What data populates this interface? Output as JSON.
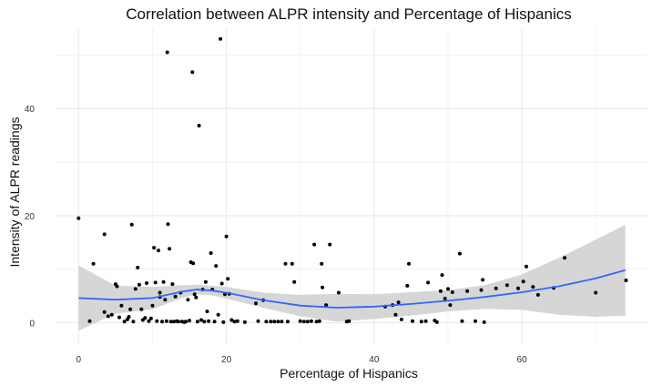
{
  "chart_data": {
    "type": "scatter",
    "title": "Correlation between ALPR intensity and Percentage of Hispanics",
    "xlabel": "Percentage of Hispanics",
    "ylabel": "Intensity of ALPR readings",
    "xlim": [
      -3,
      77
    ],
    "ylim": [
      -4,
      55
    ],
    "x_ticks": [
      0,
      20,
      40,
      60
    ],
    "y_ticks": [
      0,
      20,
      40
    ],
    "grid": true,
    "colors": {
      "points": "#000000",
      "smooth_line": "#3366ff",
      "ribbon": "#cfcfcf",
      "grid": "#ebebeb"
    },
    "points": [
      [
        0,
        19.5
      ],
      [
        1.5,
        0.3
      ],
      [
        2,
        11
      ],
      [
        3.5,
        16.5
      ],
      [
        3.5,
        2
      ],
      [
        4,
        1.2
      ],
      [
        4.5,
        1.5
      ],
      [
        5,
        7.2
      ],
      [
        5.2,
        6.8
      ],
      [
        5.5,
        1
      ],
      [
        5.8,
        3.2
      ],
      [
        6.2,
        0.2
      ],
      [
        6.6,
        0.6
      ],
      [
        6.8,
        1.1
      ],
      [
        7,
        2.5
      ],
      [
        7.2,
        18.3
      ],
      [
        7.4,
        0.2
      ],
      [
        7.7,
        6.3
      ],
      [
        8,
        10.3
      ],
      [
        8.2,
        7.1
      ],
      [
        8.5,
        2.5
      ],
      [
        8.7,
        0.5
      ],
      [
        9,
        0.9
      ],
      [
        9.2,
        7.4
      ],
      [
        9.5,
        0.3
      ],
      [
        9.8,
        0.8
      ],
      [
        10,
        3.2
      ],
      [
        10.2,
        14
      ],
      [
        10.4,
        7.5
      ],
      [
        10.6,
        0.3
      ],
      [
        10.8,
        13.5
      ],
      [
        11,
        5.6
      ],
      [
        11,
        4.8
      ],
      [
        11.3,
        0.2
      ],
      [
        11.5,
        7.6
      ],
      [
        11.7,
        4.3
      ],
      [
        11.9,
        0.3
      ],
      [
        12,
        50.5
      ],
      [
        12.1,
        18.4
      ],
      [
        12.3,
        13.8
      ],
      [
        12.5,
        0.2
      ],
      [
        12.7,
        7.2
      ],
      [
        12.9,
        0.2
      ],
      [
        13.1,
        4.9
      ],
      [
        13.3,
        0.3
      ],
      [
        13.5,
        0.2
      ],
      [
        13.8,
        5.6
      ],
      [
        14,
        0.2
      ],
      [
        14.3,
        0.1
      ],
      [
        14.5,
        0.2
      ],
      [
        14.8,
        4.3
      ],
      [
        15,
        0.4
      ],
      [
        15.2,
        11.3
      ],
      [
        15.4,
        46.8
      ],
      [
        15.5,
        11.1
      ],
      [
        15.7,
        5.3
      ],
      [
        15.9,
        4.7
      ],
      [
        16.1,
        0.2
      ],
      [
        16.3,
        36.8
      ],
      [
        16.6,
        0.5
      ],
      [
        16.8,
        6.2
      ],
      [
        17,
        0.2
      ],
      [
        17.2,
        7.6
      ],
      [
        17.4,
        2.1
      ],
      [
        17.6,
        0.3
      ],
      [
        17.9,
        13
      ],
      [
        18.1,
        6.2
      ],
      [
        18.4,
        0.2
      ],
      [
        18.6,
        10.6
      ],
      [
        18.9,
        1.5
      ],
      [
        19.2,
        53
      ],
      [
        19.4,
        7.3
      ],
      [
        19.6,
        0.1
      ],
      [
        19.8,
        5.3
      ],
      [
        20,
        16.1
      ],
      [
        20.2,
        8.2
      ],
      [
        20.4,
        5.4
      ],
      [
        20.7,
        0.5
      ],
      [
        21.1,
        0.2
      ],
      [
        21.5,
        0.3
      ],
      [
        22.5,
        0.1
      ],
      [
        24,
        3.6
      ],
      [
        24.3,
        0.3
      ],
      [
        25,
        4.2
      ],
      [
        25.4,
        0.2
      ],
      [
        26,
        0.2
      ],
      [
        26.5,
        0.2
      ],
      [
        27,
        0.2
      ],
      [
        27.5,
        0.2
      ],
      [
        28,
        11
      ],
      [
        28.3,
        0.2
      ],
      [
        28.9,
        11
      ],
      [
        29.2,
        7.6
      ],
      [
        30,
        0.3
      ],
      [
        30.5,
        0.2
      ],
      [
        31,
        0.2
      ],
      [
        31.5,
        0.3
      ],
      [
        31.9,
        14.6
      ],
      [
        32.2,
        0.2
      ],
      [
        32.6,
        0.3
      ],
      [
        32.9,
        11
      ],
      [
        33,
        6.6
      ],
      [
        33.5,
        3.3
      ],
      [
        34,
        14.6
      ],
      [
        35.2,
        5.6
      ],
      [
        36.3,
        0.2
      ],
      [
        36.6,
        0.3
      ],
      [
        41.5,
        3
      ],
      [
        42.5,
        3.3
      ],
      [
        42.9,
        1.5
      ],
      [
        43.3,
        3.8
      ],
      [
        43.7,
        0.6
      ],
      [
        44.5,
        6.9
      ],
      [
        44.7,
        11
      ],
      [
        45.2,
        0.3
      ],
      [
        46.4,
        0.2
      ],
      [
        47,
        0.3
      ],
      [
        47.3,
        7.5
      ],
      [
        48.2,
        0.4
      ],
      [
        48.5,
        0.1
      ],
      [
        49,
        5.9
      ],
      [
        49.2,
        8.9
      ],
      [
        49.6,
        4.5
      ],
      [
        50,
        6.3
      ],
      [
        50.3,
        3.3
      ],
      [
        50.6,
        5.7
      ],
      [
        51.6,
        12.9
      ],
      [
        51.9,
        0.3
      ],
      [
        52.6,
        5.9
      ],
      [
        53.7,
        0.3
      ],
      [
        54.5,
        6.1
      ],
      [
        54.7,
        8
      ],
      [
        54.9,
        0.1
      ],
      [
        56.5,
        6.4
      ],
      [
        58,
        7
      ],
      [
        59.5,
        6.4
      ],
      [
        60.2,
        7.7
      ],
      [
        60.6,
        10.5
      ],
      [
        61.5,
        6.7
      ],
      [
        62.2,
        5.2
      ],
      [
        64.3,
        6.5
      ],
      [
        65.8,
        12.1
      ],
      [
        70,
        5.6
      ],
      [
        74.1,
        7.9
      ]
    ],
    "smooth_curve": {
      "x": [
        0,
        5,
        10,
        14,
        16,
        18,
        20,
        25,
        30,
        35,
        40,
        45,
        50,
        55,
        60,
        65,
        70,
        74
      ],
      "y": [
        4.6,
        4.3,
        4.6,
        5.8,
        6.2,
        6,
        5.6,
        4.2,
        3.2,
        2.8,
        3,
        3.5,
        4.1,
        4.8,
        5.7,
        6.8,
        8.3,
        9.8
      ],
      "lower": [
        -1.5,
        1.7,
        2.5,
        4.6,
        5.3,
        5.1,
        4.5,
        2.8,
        1.2,
        0.2,
        0.7,
        1.3,
        2.1,
        2.6,
        2.4,
        1.5,
        1.1,
        1.3
      ],
      "upper": [
        10.7,
        6.9,
        6.7,
        7,
        7.1,
        6.9,
        6.7,
        5.6,
        5.2,
        5.4,
        5.3,
        5.7,
        6.1,
        7,
        9,
        12.1,
        15.5,
        18.3
      ]
    }
  }
}
